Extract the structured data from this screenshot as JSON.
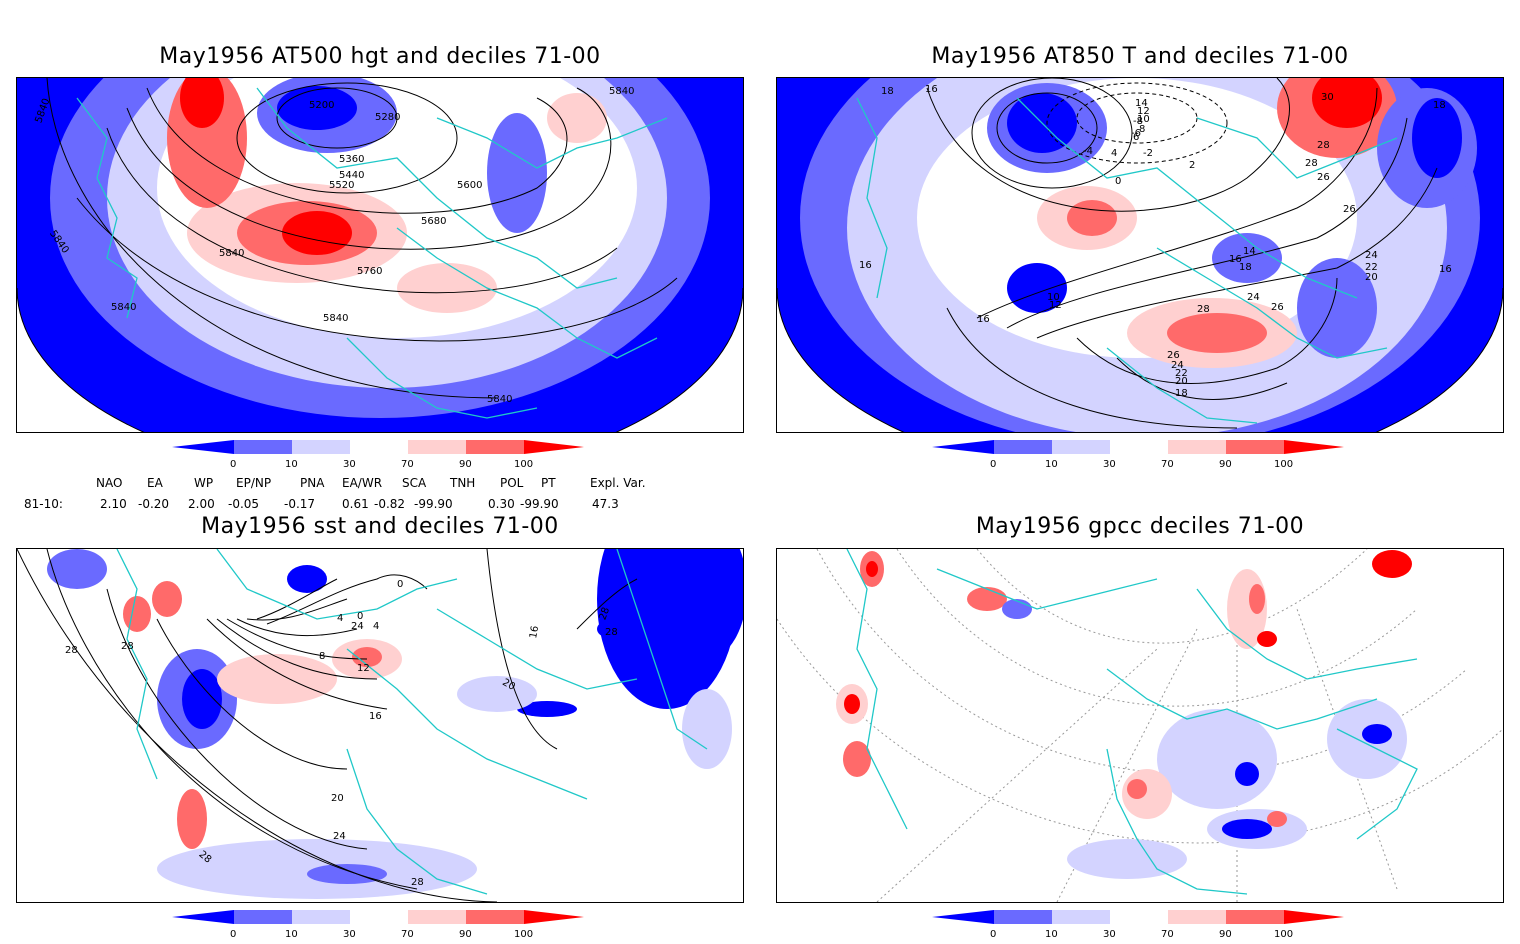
{
  "panels": [
    {
      "id": "hgt500",
      "title": "May1956 AT500 hgt and deciles 71-00",
      "contour_labels": [
        "5200",
        "5280",
        "5360",
        "5440",
        "5520",
        "5600",
        "5680",
        "5760",
        "5840",
        "5840",
        "5840",
        "5840",
        "5840",
        "5840",
        "5840"
      ]
    },
    {
      "id": "t850",
      "title": "May1956 AT850 T and deciles 71-00",
      "contour_labels": [
        "18",
        "16",
        "14",
        "12",
        "10",
        "8",
        "6",
        "4",
        "2",
        "0",
        "-2",
        "-4",
        "-6",
        "-8",
        "30",
        "28",
        "26",
        "26",
        "24",
        "22",
        "20",
        "18",
        "16",
        "14",
        "12",
        "10",
        "16",
        "16",
        "18",
        "20",
        "22",
        "24",
        "26",
        "28",
        "16",
        "18",
        "24",
        "26",
        "28"
      ]
    },
    {
      "id": "sst",
      "title": "May1956 sst and deciles 71-00",
      "contour_labels": [
        "28",
        "28",
        "4",
        "0",
        "8",
        "12",
        "16",
        "20",
        "24",
        "28",
        "28",
        "16",
        "28",
        "20",
        "24",
        "28",
        "4",
        "0"
      ]
    },
    {
      "id": "gpcc",
      "title": "May1956 gpcc deciles 71-00",
      "contour_labels": []
    }
  ],
  "legend": {
    "ticks": [
      "0",
      "10",
      "30",
      "70",
      "90",
      "100"
    ],
    "colors": [
      "#0000ff",
      "#6a6aff",
      "#d3d3ff",
      "#ffffff",
      "#ffd0d0",
      "#ff6a6a",
      "#ff0000"
    ]
  },
  "indices": {
    "header": [
      "NAO",
      "EA",
      "WP",
      "EP/NP",
      "PNA",
      "EA/WR",
      "SCA",
      "TNH",
      "POL",
      "PT",
      "Expl. Var."
    ],
    "row_label": "81-10:",
    "values": [
      "2.10",
      "-0.20",
      "2.00",
      "-0.05",
      "-0.17",
      "0.61",
      "-0.82",
      "-99.90",
      "0.30",
      "-99.90",
      "47.3"
    ]
  }
}
